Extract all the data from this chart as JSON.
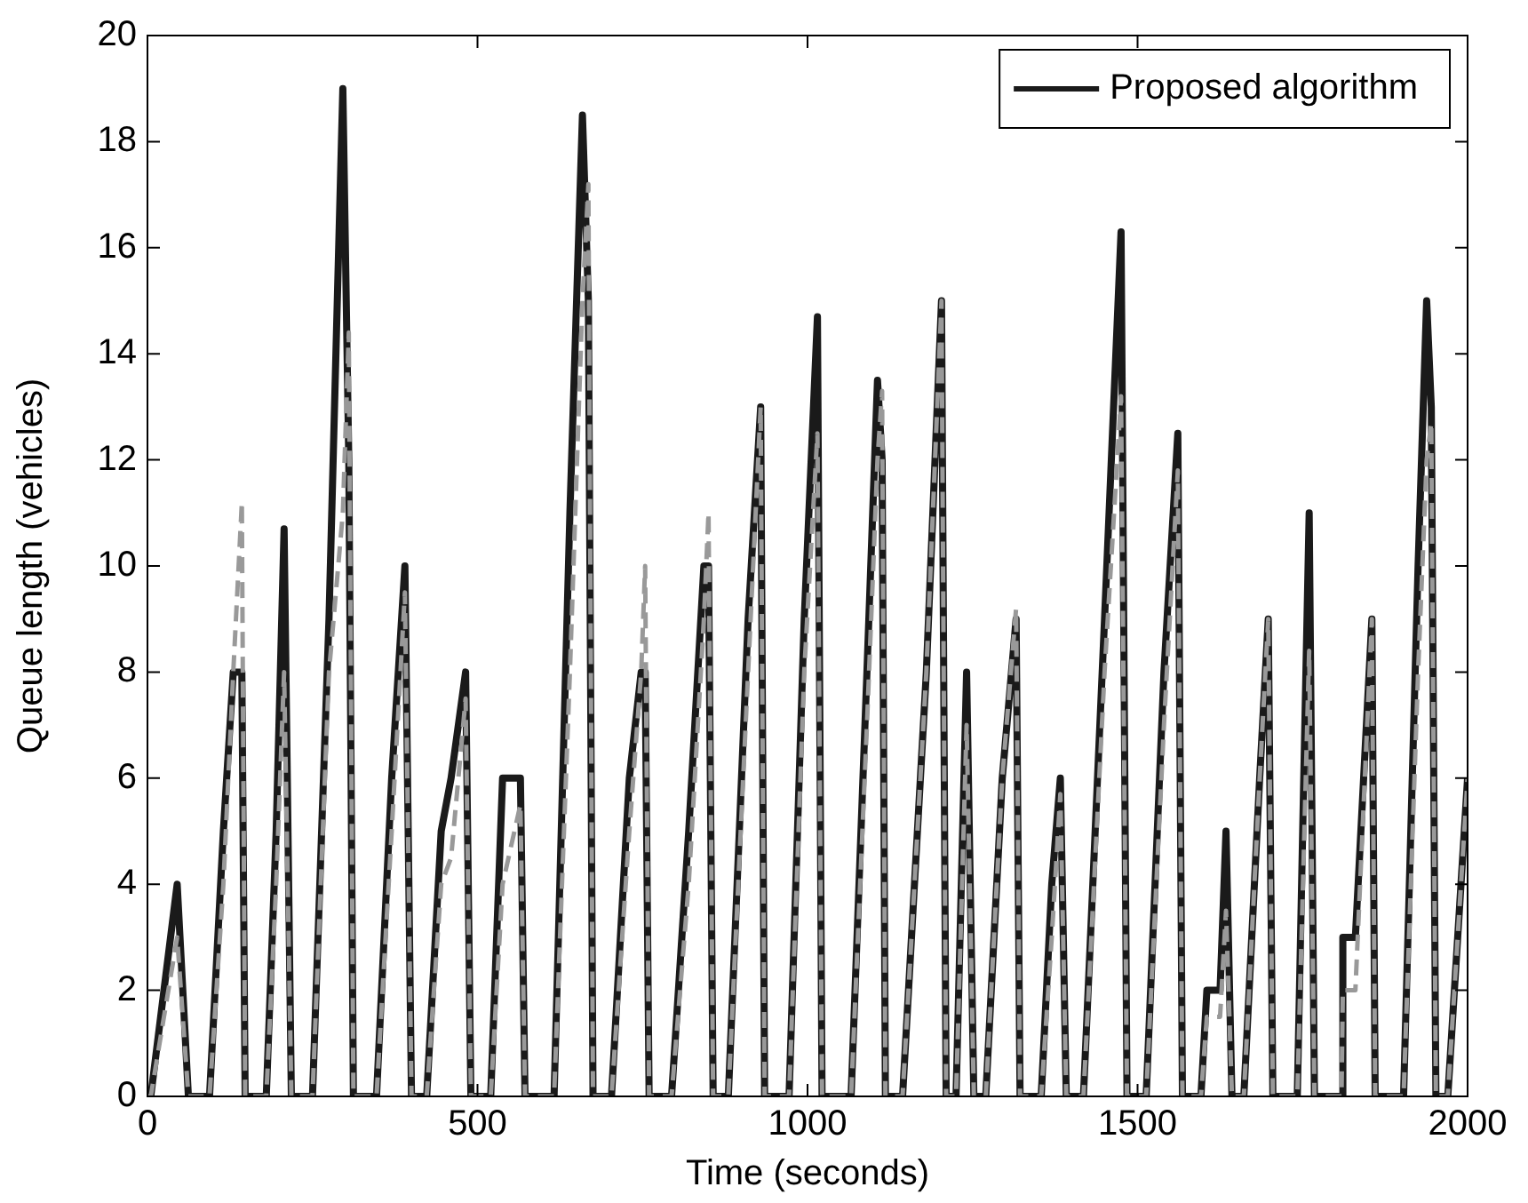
{
  "chart_data": {
    "type": "line",
    "xlabel": "Time (seconds)",
    "ylabel": "Queue length (vehicles)",
    "x": [
      0,
      5,
      25,
      45,
      62,
      94,
      115,
      130,
      143,
      148,
      180,
      195,
      207,
      218,
      250,
      275,
      296,
      305,
      312,
      347,
      370,
      390,
      400,
      423,
      445,
      460,
      482,
      490,
      520,
      538,
      565,
      572,
      616,
      640,
      659,
      668,
      675,
      703,
      730,
      748,
      754,
      760,
      794,
      820,
      843,
      850,
      857,
      880,
      910,
      929,
      935,
      972,
      995,
      1015,
      1022,
      1066,
      1090,
      1106,
      1113,
      1118,
      1144,
      1180,
      1203,
      1210,
      1225,
      1241,
      1252,
      1270,
      1295,
      1316,
      1322,
      1354,
      1370,
      1383,
      1392,
      1418,
      1450,
      1475,
      1484,
      1513,
      1540,
      1561,
      1568,
      1596,
      1605,
      1625,
      1634,
      1643,
      1661,
      1685,
      1698,
      1705,
      1742,
      1760,
      1768,
      1809,
      1811,
      1830,
      1855,
      1860,
      1903,
      1925,
      1938,
      1945,
      1952,
      1970,
      2000
    ],
    "series": [
      {
        "name": "Proposed algorithm",
        "color": "#1a1a1a",
        "line_style": "solid",
        "values": [
          0,
          0,
          2,
          4,
          0,
          0,
          5,
          8,
          8,
          0,
          0,
          5,
          10.7,
          0,
          0,
          9,
          19,
          12,
          0,
          0,
          6,
          10,
          0,
          0,
          5,
          6,
          8,
          0,
          0,
          6,
          6,
          0,
          0,
          11,
          18.5,
          15,
          0,
          0,
          6,
          8,
          8,
          0,
          0,
          5,
          10,
          10,
          0,
          0,
          9,
          13,
          0,
          0,
          9,
          14.7,
          0,
          0,
          8,
          13.5,
          12,
          0,
          0,
          8,
          15,
          0,
          0,
          8,
          0,
          0,
          6,
          9,
          0,
          0,
          4,
          6,
          0,
          0,
          9,
          16.3,
          0,
          0,
          8,
          12.5,
          0,
          0,
          2,
          2,
          5,
          0,
          0,
          6,
          9,
          0,
          0,
          11,
          0,
          0,
          3,
          3,
          9,
          0,
          0,
          10,
          15,
          13,
          0,
          0,
          6
        ]
      },
      {
        "color": "#999999",
        "line_style": "dashed",
        "values": [
          0,
          0,
          1.5,
          3,
          0,
          0,
          4,
          8,
          11.2,
          0,
          0,
          4,
          8,
          0,
          0,
          8,
          11,
          14.4,
          0,
          0,
          5,
          9.5,
          0,
          0,
          4,
          4.5,
          7.5,
          0,
          0,
          4,
          5.5,
          0,
          0,
          8,
          15,
          17.2,
          0,
          0,
          5,
          8,
          10,
          0,
          0,
          4,
          9,
          11,
          0,
          0,
          8,
          13,
          0,
          0,
          8,
          12.5,
          0,
          0,
          7,
          12,
          13.3,
          0,
          0,
          8,
          15,
          0,
          0,
          7,
          0,
          0,
          6,
          9.2,
          0,
          0,
          3,
          5.7,
          0,
          0,
          8,
          13.2,
          0,
          0,
          7,
          11.8,
          0,
          0,
          1.5,
          1.5,
          3.5,
          0,
          0,
          6,
          9,
          0,
          0,
          8.4,
          0,
          0,
          2,
          2,
          9,
          0,
          0,
          8,
          12,
          12.7,
          0,
          0,
          6
        ]
      }
    ],
    "xlim": [
      0,
      2000
    ],
    "xticks": [
      0,
      500,
      1000,
      1500,
      2000
    ],
    "ylim": [
      0,
      20
    ],
    "yticks": [
      0,
      2,
      4,
      6,
      8,
      10,
      12,
      14,
      16,
      18,
      20
    ],
    "grid": false,
    "legend": "top right",
    "marker": "none"
  }
}
